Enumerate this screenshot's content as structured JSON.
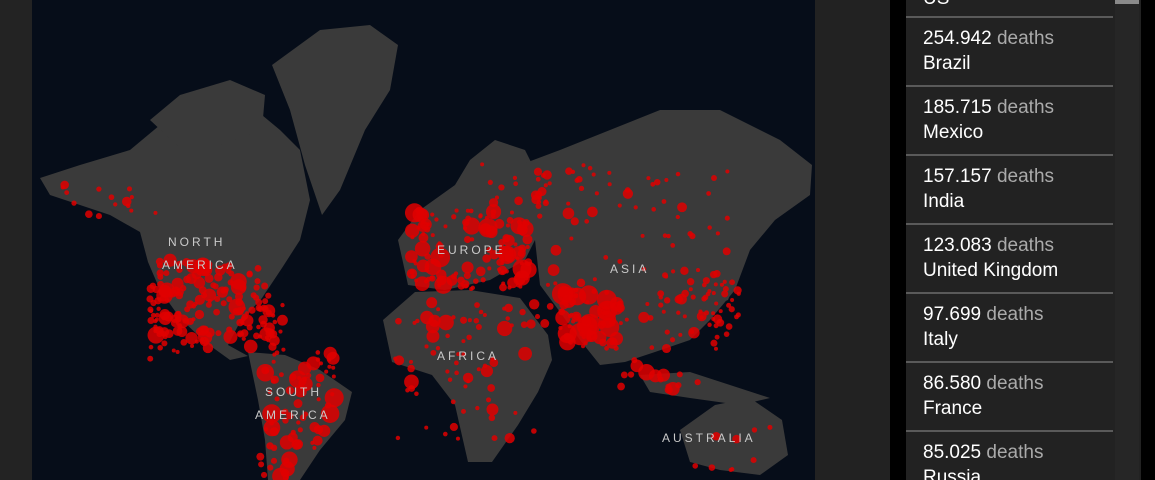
{
  "map": {
    "labels": {
      "north": "NORTH",
      "america": "AMERICA",
      "south": "SOUTH",
      "south_america": "AMERICA",
      "europe": "EUROPE",
      "africa": "AFRICA",
      "asia": "ASIA",
      "australia": "AUSTRALIA"
    },
    "colors": {
      "land": "#3a3a3a",
      "ocean": "#060d19",
      "marker": "#e00000"
    }
  },
  "deaths_list": {
    "unit": "deaths",
    "items": [
      {
        "value": "",
        "country": "US"
      },
      {
        "value": "254.942",
        "country": "Brazil"
      },
      {
        "value": "185.715",
        "country": "Mexico"
      },
      {
        "value": "157.157",
        "country": "India"
      },
      {
        "value": "123.083",
        "country": "United Kingdom"
      },
      {
        "value": "97.699",
        "country": "Italy"
      },
      {
        "value": "86.580",
        "country": "France"
      },
      {
        "value": "85.025",
        "country": "Russia"
      }
    ]
  }
}
